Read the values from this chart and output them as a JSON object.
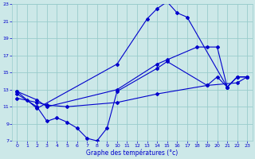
{
  "title": "Graphe des températures (°c)",
  "bg_color": "#cce8e8",
  "grid_color": "#99cccc",
  "line_color": "#0000cc",
  "xlim": [
    -0.5,
    23.5
  ],
  "ylim": [
    7,
    23
  ],
  "xticks": [
    0,
    1,
    2,
    3,
    4,
    5,
    6,
    7,
    8,
    9,
    10,
    11,
    12,
    13,
    14,
    15,
    16,
    17,
    18,
    19,
    20,
    21,
    22,
    23
  ],
  "yticks": [
    7,
    9,
    11,
    13,
    15,
    17,
    19,
    21,
    23
  ],
  "series": [
    {
      "x": [
        0,
        1,
        2,
        10,
        13,
        14,
        15,
        16,
        17,
        21,
        22,
        23
      ],
      "y": [
        12.8,
        11.8,
        10.8,
        16.0,
        21.3,
        22.5,
        23.3,
        22.0,
        21.5,
        13.3,
        14.5,
        14.5
      ]
    },
    {
      "x": [
        0,
        2,
        3,
        10,
        14,
        15,
        18,
        19,
        20,
        21,
        22,
        23
      ],
      "y": [
        12.8,
        11.8,
        11.0,
        13.0,
        16.0,
        16.5,
        18.0,
        18.0,
        18.0,
        13.3,
        14.5,
        14.5
      ]
    },
    {
      "x": [
        0,
        2,
        3,
        4,
        5,
        6,
        7,
        8,
        9,
        10,
        14,
        15,
        19,
        20,
        21,
        22,
        23
      ],
      "y": [
        12.5,
        11.0,
        9.3,
        9.7,
        9.2,
        8.5,
        7.3,
        7.0,
        8.5,
        12.8,
        15.5,
        16.3,
        13.5,
        14.5,
        13.3,
        14.5,
        14.5
      ]
    },
    {
      "x": [
        0,
        2,
        3,
        5,
        10,
        14,
        19,
        22,
        23
      ],
      "y": [
        12.0,
        11.5,
        11.2,
        11.0,
        11.5,
        12.5,
        13.5,
        13.8,
        14.5
      ]
    }
  ]
}
